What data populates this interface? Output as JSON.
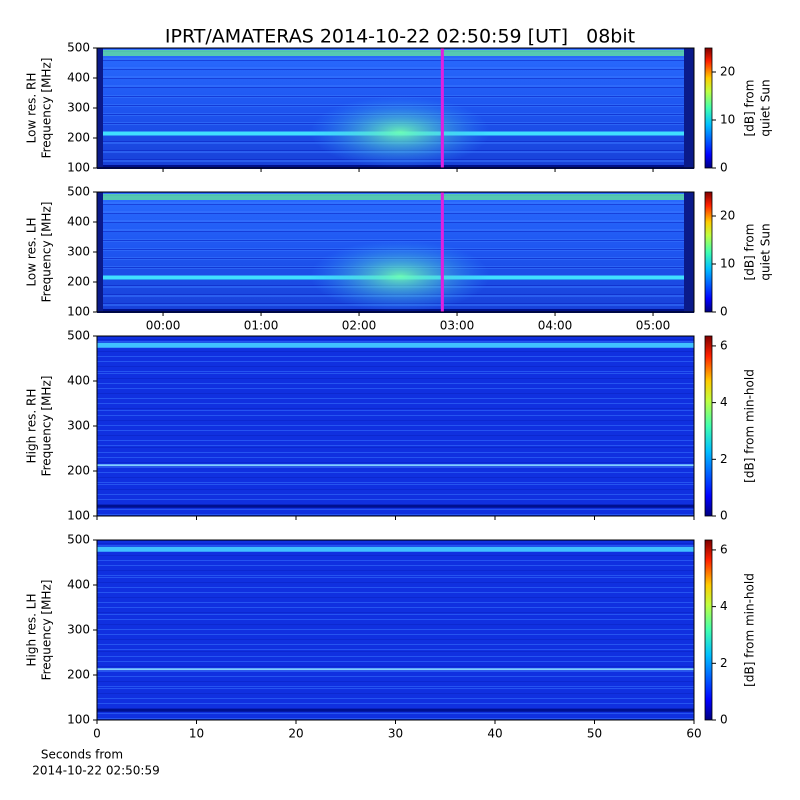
{
  "title": "IPRT/AMATERAS 2014-10-22 02:50:59 [UT]   08bit",
  "chart_data": [
    {
      "type": "spectrogram",
      "ylabel": [
        "Low res. RH",
        "Frequency [MHz]"
      ],
      "ylim": [
        100,
        500
      ],
      "yticks": [
        100,
        200,
        300,
        400,
        500
      ],
      "xlim": [
        -0.674,
        5.418
      ],
      "marker": 2.85,
      "marker_color": "#e020e0",
      "colorbar": {
        "label": [
          "[dB] from",
          "quiet Sun"
        ],
        "lim": [
          0,
          25
        ],
        "ticks": [
          0,
          10,
          20
        ]
      }
    },
    {
      "type": "spectrogram",
      "ylabel": [
        "Low res. LH",
        "Frequency [MHz]"
      ],
      "ylim": [
        100,
        500
      ],
      "yticks": [
        100,
        200,
        300,
        400,
        500
      ],
      "xlim": [
        -0.674,
        5.418
      ],
      "xticks": [
        {
          "value": 0,
          "label": "00:00"
        },
        {
          "value": 1,
          "label": "01:00"
        },
        {
          "value": 2,
          "label": "02:00"
        },
        {
          "value": 3,
          "label": "03:00"
        },
        {
          "value": 4,
          "label": "04:00"
        },
        {
          "value": 5,
          "label": "05:00"
        }
      ],
      "marker": 2.85,
      "marker_color": "#e020e0",
      "colorbar": {
        "label": [
          "[dB] from",
          "quiet Sun"
        ],
        "lim": [
          0,
          25
        ],
        "ticks": [
          0,
          10,
          20
        ]
      }
    },
    {
      "type": "spectrogram",
      "ylabel": [
        "High res. RH",
        "Frequency [MHz]"
      ],
      "ylim": [
        100,
        500
      ],
      "yticks": [
        100,
        200,
        300,
        400,
        500
      ],
      "xlim": [
        0,
        60
      ],
      "colorbar": {
        "label": [
          "[dB] from min-hold"
        ],
        "lim": [
          0,
          6.35
        ],
        "ticks": [
          0,
          2,
          4,
          6
        ]
      }
    },
    {
      "type": "spectrogram",
      "ylabel": [
        "High res. LH",
        "Frequency [MHz]"
      ],
      "xlabel": [
        "Seconds from",
        "2014-10-22 02:50:59"
      ],
      "ylim": [
        100,
        500
      ],
      "yticks": [
        100,
        200,
        300,
        400,
        500
      ],
      "xlim": [
        0,
        60
      ],
      "xticks": [
        0,
        10,
        20,
        30,
        40,
        50,
        60
      ],
      "colorbar": {
        "label": [
          "[dB] from min-hold"
        ],
        "lim": [
          0,
          6.35
        ],
        "ticks": [
          0,
          2,
          4,
          6
        ]
      }
    }
  ]
}
